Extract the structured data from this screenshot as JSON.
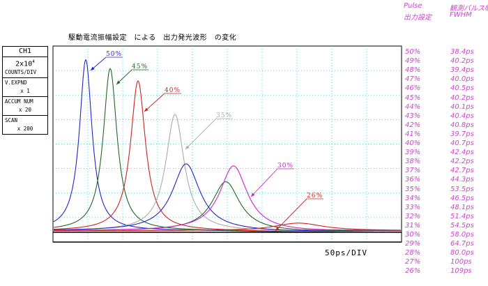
{
  "chart_data": {
    "type": "line",
    "title": "駆動電流振幅設定　による　出力発光波形　の変化",
    "x_scale_label": "50ps/DIV",
    "grid": true,
    "series": [
      {
        "name": "50%",
        "color": "#2222cc",
        "center": 123,
        "height": 0.97,
        "width": 11
      },
      {
        "name": "45%",
        "color": "#226622",
        "center": 158,
        "height": 0.92,
        "width": 12
      },
      {
        "name": "40%",
        "color": "#cc2222",
        "center": 198,
        "height": 0.85,
        "width": 13
      },
      {
        "name": "35%",
        "color": "#aaaaaa",
        "center": 251,
        "height": 0.66,
        "width": 16
      },
      {
        "name": "",
        "color": "#2222cc",
        "center": 267,
        "height": 0.38,
        "width": 24
      },
      {
        "name": "",
        "color": "#226622",
        "center": 324,
        "height": 0.28,
        "width": 24
      },
      {
        "name": "30%",
        "color": "#cc22cc",
        "center": 335,
        "height": 0.37,
        "width": 24
      },
      {
        "name": "26%",
        "color": "#cc2222",
        "center": 428,
        "height": 0.05,
        "width": 45
      }
    ]
  },
  "header": {
    "col1_line1": "Pulse",
    "col1_line2": "出力設定",
    "col2_line1": "観測パルス幅",
    "col2_line2": "FWHM"
  },
  "table": [
    {
      "setting": "50%",
      "fwhm": "38.4ps"
    },
    {
      "setting": "49%",
      "fwhm": "40.2ps"
    },
    {
      "setting": "48%",
      "fwhm": "39.4ps"
    },
    {
      "setting": "47%",
      "fwhm": "40.0ps"
    },
    {
      "setting": "46%",
      "fwhm": "40.5ps"
    },
    {
      "setting": "45%",
      "fwhm": "40.2ps"
    },
    {
      "setting": "44%",
      "fwhm": "40.1ps"
    },
    {
      "setting": "43%",
      "fwhm": "40.4ps"
    },
    {
      "setting": "42%",
      "fwhm": "40.8ps"
    },
    {
      "setting": "41%",
      "fwhm": "39.7ps"
    },
    {
      "setting": "40%",
      "fwhm": "40.7ps"
    },
    {
      "setting": "39%",
      "fwhm": "42.4ps"
    },
    {
      "setting": "38%",
      "fwhm": "42.2ps"
    },
    {
      "setting": "37%",
      "fwhm": "42.7ps"
    },
    {
      "setting": "36%",
      "fwhm": "44.3ps"
    },
    {
      "setting": "35%",
      "fwhm": "53.5ps"
    },
    {
      "setting": "34%",
      "fwhm": "46.5ps"
    },
    {
      "setting": "33%",
      "fwhm": "48.1ps"
    },
    {
      "setting": "32%",
      "fwhm": "51.4ps"
    },
    {
      "setting": "31%",
      "fwhm": "54.5ps"
    },
    {
      "setting": "30%",
      "fwhm": "58.0ps"
    },
    {
      "setting": "29%",
      "fwhm": "64.7ps"
    },
    {
      "setting": "28%",
      "fwhm": "80.0ps"
    },
    {
      "setting": "27%",
      "fwhm": "100ps"
    },
    {
      "setting": "26%",
      "fwhm": "109ps"
    }
  ],
  "sidebox": {
    "channel": "CH1",
    "sensitivity": "2x10",
    "sensitivity_exp": "4",
    "sensitivity_unit": "COUNTS/DIV",
    "vexpand_label": "V.EXPND",
    "vexpand_value": "x 1",
    "accum_label": "ACCUM NUM",
    "accum_value": "x 20",
    "scan_label": "SCAN",
    "scan_value": "x 200"
  }
}
